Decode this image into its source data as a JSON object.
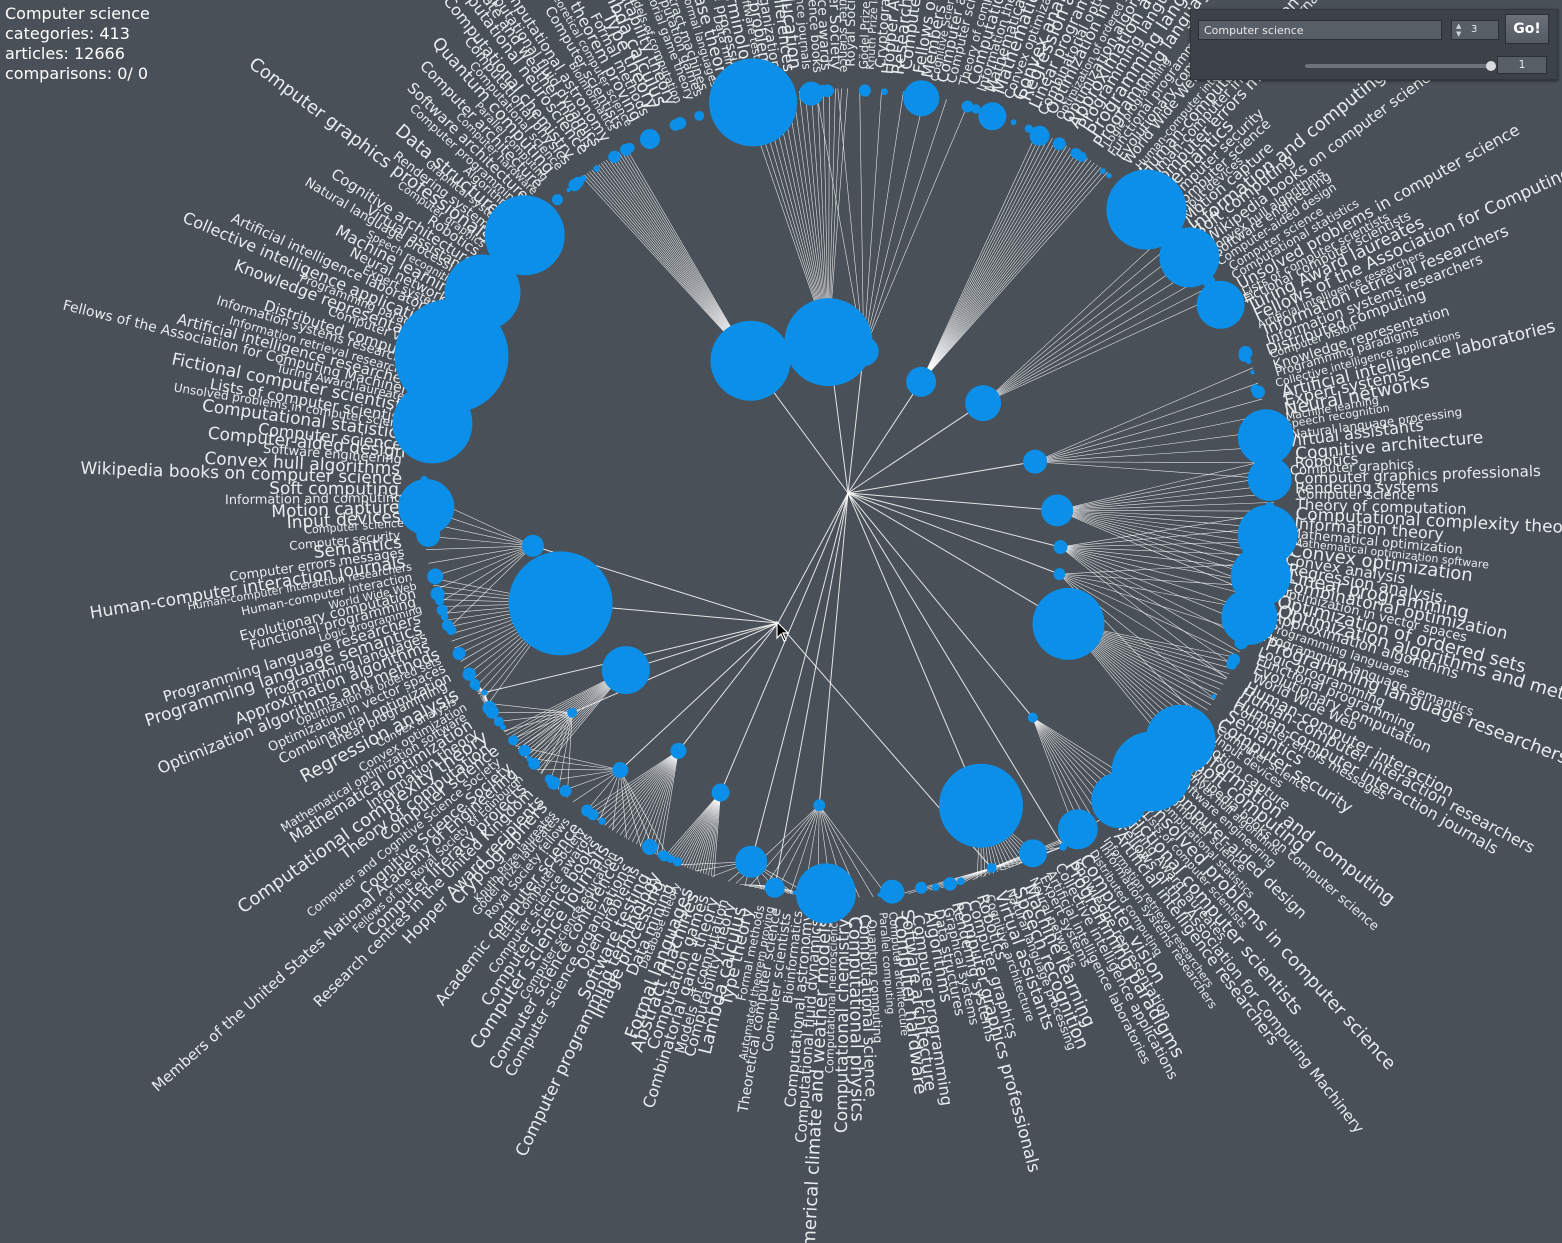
{
  "stats": {
    "root": "Computer science",
    "categories": "categories: 413",
    "articles": "articles: 12666",
    "comparisons": "comparisons: 0/ 0"
  },
  "controls": {
    "search_value": "Computer science",
    "depth_value": "3",
    "go_label": "Go!",
    "slider_level": 1.0,
    "slider_value": "1"
  },
  "colors": {
    "background": "#4a5057",
    "node": "#0b8fe8",
    "edge": "#ffffff",
    "label": "#e9ecef"
  },
  "labels": [
    "Computer science",
    "Theory of computation",
    "Computational complexity theory",
    "Information theory",
    "Mathematical optimization",
    "Mathematical optimization software",
    "Convex optimization",
    "Convex analysis",
    "Regression analysis",
    "Linear programming",
    "Combinatorial optimization",
    "Optimization in vector spaces",
    "Optimization of ordered sets",
    "Optimization algorithms and methods",
    "Approximation algorithms",
    "Programming languages",
    "Programming language semantics",
    "Programming language researchers",
    "Logic programming",
    "Functional programming",
    "Evolutionary computation",
    "World Wide Web",
    "Human-computer interaction",
    "Human-computer interaction researchers",
    "Human-computer interaction journals",
    "Computer errors messages",
    "Semantics",
    "Computer security",
    "Computer science",
    "Input devices",
    "Motion capture",
    "Information and computing",
    "Soft computing",
    "Wikipedia books on computer science",
    "Convex hull algorithms",
    "Software engineering",
    "Computer-aided design",
    "Computer science",
    "Computational statistics",
    "Unsolved problems in computer science",
    "Lists of computer scientists",
    "Fictional computer scientists",
    "Turing Award laureates",
    "Fellows of the Association for Computing Machinery",
    "Artificial intelligence researchers",
    "Information retrieval researchers",
    "Information systems researchers",
    "Distributed computing",
    "Computer vision",
    "Knowledge representation",
    "Programming paradigms",
    "Collective intelligence applications",
    "Artificial intelligence laboratories",
    "Expert systems",
    "Neural networks",
    "Machine learning",
    "Speech recognition",
    "Natural language processing",
    "Virtual assistants",
    "Cognitive architecture",
    "Robotics",
    "Computer graphics",
    "Computer graphics professionals",
    "Rendering systems",
    "Graphical systems",
    "Data structures",
    "Algorithms",
    "Computer programming",
    "Software architecture",
    "Computer hardware",
    "Computer architecture",
    "Parallel computing",
    "Quantum computing",
    "Computational science",
    "Computational physics",
    "Computational chemistry",
    "Computational neuroscience",
    "Numerical climate and weather models",
    "Computational fluid dynamics",
    "Computational astronomy",
    "Bioinformatics",
    "Computer scientists",
    "Theoretical computer science",
    "Automated theorem proving",
    "Formal methods",
    "Type theory",
    "Lambda calculus",
    "Computability theory",
    "Models of computation",
    "Combinatorial game theory",
    "Computation games",
    "Abstract machines",
    "Formal languages",
    "Database theory",
    "Data mining",
    "Image processing",
    "Computer programming terminology",
    "Software testing",
    "Open problems",
    "Computer science organizations",
    "Computer science conferences",
    "Computer science education",
    "Computer science journals",
    "Computer science books",
    "Computer science awards",
    "IEEE Computer Society",
    "Academic computer science",
    "Royal Society fellows",
    "Gödel Prize laureates",
    "Knuth Prize laureates",
    "Cryptographers",
    "Hopper Award recipients",
    "Research centres in the United Kingdom",
    "Computer literacy projects",
    "Fellows of the Royal Society of Edinburgh",
    "Members of the United States National Academy of Engineering",
    "Cognitive Science Society",
    "Computer and Cognitive Science Society"
  ]
}
